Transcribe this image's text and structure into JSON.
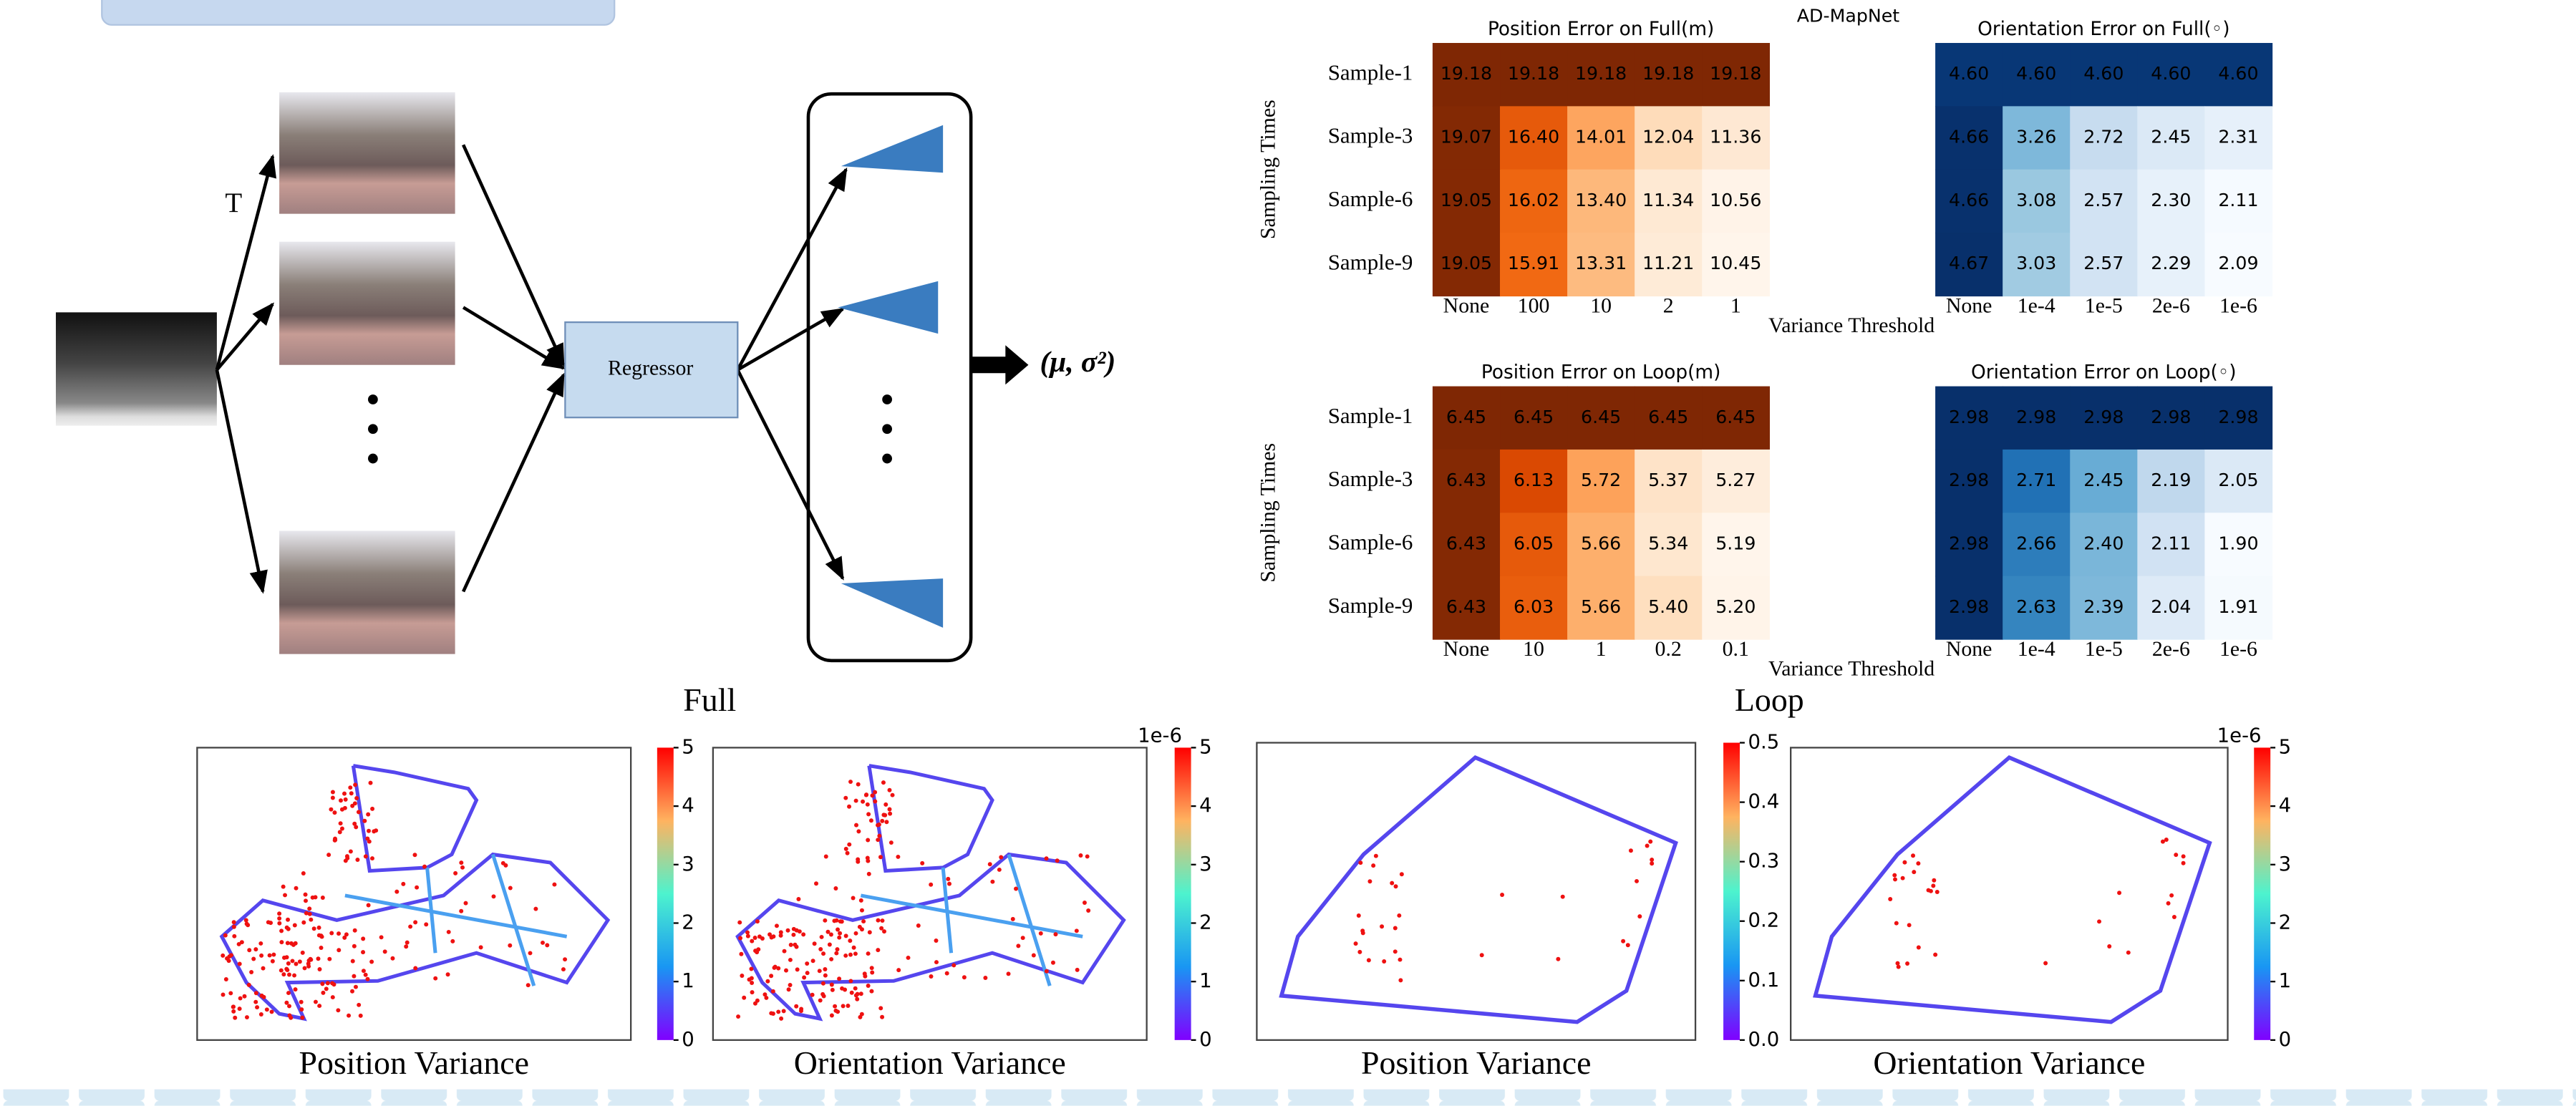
{
  "diagram": {
    "t_label": "T",
    "regressor": "Regressor",
    "output": "(μ, σ²)"
  },
  "dataset_title": "AD-MapNet",
  "chart_data": [
    {
      "type": "heatmap",
      "title": "Position Error on Full(m)",
      "y_label": "Sampling Times",
      "colormap": "Oranges",
      "x_categories": [
        "None",
        "100",
        "10",
        "2",
        "1"
      ],
      "y_categories": [
        "Sample-1",
        "Sample-3",
        "Sample-6",
        "Sample-9"
      ],
      "values": [
        [
          19.18,
          19.18,
          19.18,
          19.18,
          19.18
        ],
        [
          19.07,
          16.4,
          14.01,
          12.04,
          11.36
        ],
        [
          19.05,
          16.02,
          13.4,
          11.34,
          10.56
        ],
        [
          19.05,
          15.91,
          13.31,
          11.21,
          10.45
        ]
      ],
      "value_labels": [
        [
          "19.18",
          "19.18",
          "19.18",
          "19.18",
          "19.18"
        ],
        [
          "19.07",
          "16.40",
          "14.01",
          "12.04",
          "11.36"
        ],
        [
          "19.05",
          "16.02",
          "13.40",
          "11.34",
          "10.56"
        ],
        [
          "19.05",
          "15.91",
          "13.31",
          "11.21",
          "10.45"
        ]
      ]
    },
    {
      "type": "heatmap",
      "title": "Orientation Error on Full(◦)",
      "x_label": "Variance Threshold",
      "colormap": "Blues",
      "x_categories": [
        "None",
        "1e-4",
        "1e-5",
        "2e-6",
        "1e-6"
      ],
      "values": [
        [
          4.6,
          4.6,
          4.6,
          4.6,
          4.6
        ],
        [
          4.66,
          3.26,
          2.72,
          2.45,
          2.31
        ],
        [
          4.66,
          3.08,
          2.57,
          2.3,
          2.11
        ],
        [
          4.67,
          3.03,
          2.57,
          2.29,
          2.09
        ]
      ],
      "value_labels": [
        [
          "4.60",
          "4.60",
          "4.60",
          "4.60",
          "4.60"
        ],
        [
          "4.66",
          "3.26",
          "2.72",
          "2.45",
          "2.31"
        ],
        [
          "4.66",
          "3.08",
          "2.57",
          "2.30",
          "2.11"
        ],
        [
          "4.67",
          "3.03",
          "2.57",
          "2.29",
          "2.09"
        ]
      ]
    },
    {
      "type": "heatmap",
      "title": "Position Error on Loop(m)",
      "y_label": "Sampling Times",
      "colormap": "Oranges",
      "x_categories": [
        "None",
        "10",
        "1",
        "0.2",
        "0.1"
      ],
      "y_categories": [
        "Sample-1",
        "Sample-3",
        "Sample-6",
        "Sample-9"
      ],
      "values": [
        [
          6.45,
          6.45,
          6.45,
          6.45,
          6.45
        ],
        [
          6.43,
          6.13,
          5.72,
          5.37,
          5.27
        ],
        [
          6.43,
          6.05,
          5.66,
          5.34,
          5.19
        ],
        [
          6.43,
          6.03,
          5.66,
          5.4,
          5.2
        ]
      ],
      "value_labels": [
        [
          "6.45",
          "6.45",
          "6.45",
          "6.45",
          "6.45"
        ],
        [
          "6.43",
          "6.13",
          "5.72",
          "5.37",
          "5.27"
        ],
        [
          "6.43",
          "6.05",
          "5.66",
          "5.34",
          "5.19"
        ],
        [
          "6.43",
          "6.03",
          "5.66",
          "5.40",
          "5.20"
        ]
      ]
    },
    {
      "type": "heatmap",
      "title": "Orientation Error on Loop(◦)",
      "x_label": "Variance Threshold",
      "colormap": "Blues",
      "x_categories": [
        "None",
        "1e-4",
        "1e-5",
        "2e-6",
        "1e-6"
      ],
      "values": [
        [
          2.98,
          2.98,
          2.98,
          2.98,
          2.98
        ],
        [
          2.98,
          2.71,
          2.45,
          2.19,
          2.05
        ],
        [
          2.98,
          2.66,
          2.4,
          2.11,
          1.9
        ],
        [
          2.98,
          2.63,
          2.39,
          2.04,
          1.91
        ]
      ],
      "value_labels": [
        [
          "2.98",
          "2.98",
          "2.98",
          "2.98",
          "2.98"
        ],
        [
          "2.98",
          "2.71",
          "2.45",
          "2.19",
          "2.05"
        ],
        [
          "2.98",
          "2.66",
          "2.40",
          "2.11",
          "1.90"
        ],
        [
          "2.98",
          "2.63",
          "2.39",
          "2.04",
          "1.91"
        ]
      ]
    }
  ],
  "panels": {
    "full_label": "Full",
    "loop_label": "Loop",
    "plots": [
      {
        "caption": "Position Variance",
        "colorbar": {
          "lim": [
            0,
            5
          ],
          "ticks": [
            0,
            1,
            2,
            3,
            4,
            5
          ]
        }
      },
      {
        "caption": "Orientation Variance",
        "colorbar": {
          "lim": [
            0,
            5
          ],
          "ticks": [
            0,
            1,
            2,
            3,
            4,
            5
          ],
          "offset_label": "1e-6"
        }
      },
      {
        "caption": "Position Variance",
        "colorbar": {
          "lim": [
            0,
            0.5
          ],
          "ticks": [
            {
              "value": 0,
              "label": "0.0"
            },
            0.1,
            0.2,
            0.3,
            0.4,
            0.5
          ]
        }
      },
      {
        "caption": "Orientation Variance",
        "colorbar": {
          "lim": [
            0,
            5
          ],
          "ticks": [
            0,
            1,
            2,
            3,
            4,
            5
          ],
          "offset_label": "1e-6"
        }
      }
    ]
  }
}
